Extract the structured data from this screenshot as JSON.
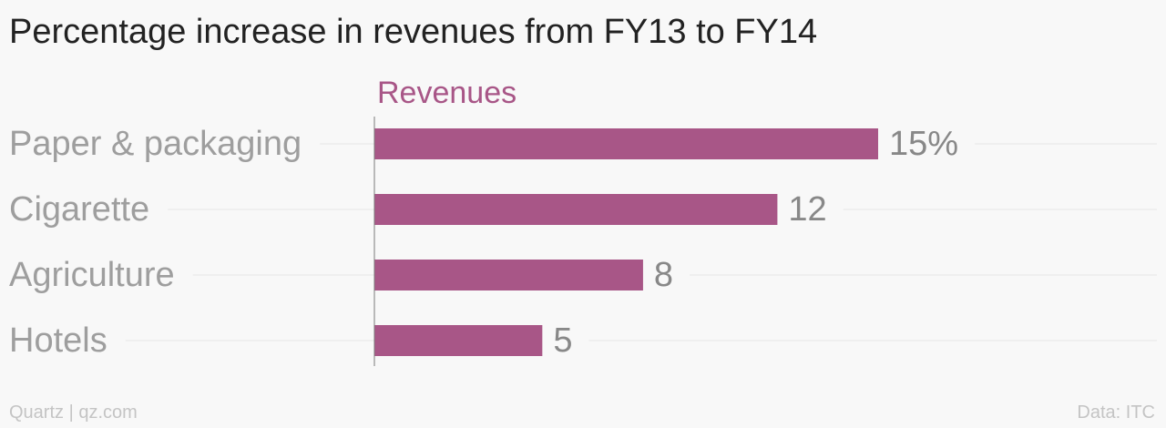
{
  "chart_data": {
    "type": "bar",
    "orientation": "horizontal",
    "title": "Percentage increase in revenues from FY13 to FY14",
    "categories": [
      "Paper & packaging",
      "Cigarette",
      "Agriculture",
      "Hotels"
    ],
    "series": [
      {
        "name": "Revenues",
        "values": [
          15,
          12,
          8,
          5
        ],
        "value_labels": [
          "15%",
          "12",
          "8",
          "5"
        ]
      }
    ],
    "xlim": [
      0,
      23.3
    ],
    "grid": true,
    "colors": {
      "bar": "#a85687",
      "series_label": "#a85687",
      "category_label": "#9e9e9e",
      "value_label": "#888888",
      "gridline": "#e6e6e6",
      "axis": "#7a7a7a"
    }
  },
  "footer": {
    "source": "Quartz | qz.com",
    "credit": "Data: ITC"
  }
}
